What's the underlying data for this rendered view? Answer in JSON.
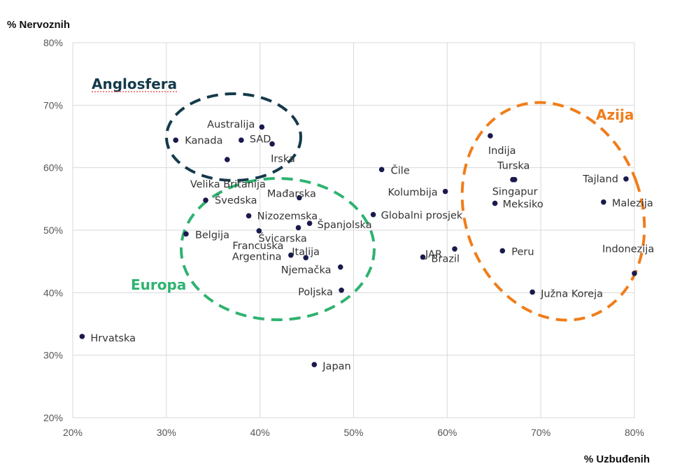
{
  "chart_data": {
    "type": "scatter",
    "xlabel": "% Uzbuđenih",
    "ylabel": "% Nervoznih",
    "xlim": [
      20,
      80
    ],
    "ylim": [
      20,
      80
    ],
    "x_ticks": [
      "20%",
      "30%",
      "40%",
      "50%",
      "60%",
      "70%",
      "80%"
    ],
    "y_ticks": [
      "20%",
      "30%",
      "40%",
      "50%",
      "60%",
      "70%",
      "80%"
    ],
    "grid": true,
    "point_color": "#1a1a4e",
    "highlight_color": "#d6246e",
    "points": [
      {
        "label": "Hrvatska",
        "x": 21,
        "y": 33
      },
      {
        "label": "Japan",
        "x": 45.8,
        "y": 28.5
      },
      {
        "label": "Kanada",
        "x": 31,
        "y": 64.4
      },
      {
        "label": "Australija",
        "x": 40.2,
        "y": 66.5
      },
      {
        "label": "SAD",
        "x": 38,
        "y": 64.4
      },
      {
        "label": "Irska",
        "x": 41.3,
        "y": 63.8
      },
      {
        "label": "Velika Britanija",
        "x": 36.5,
        "y": 61.3
      },
      {
        "label": "Mađarska",
        "x": 44.2,
        "y": 55.2
      },
      {
        "label": "Švedska",
        "x": 34.2,
        "y": 54.8
      },
      {
        "label": "Nizozemska",
        "x": 38.8,
        "y": 52.3
      },
      {
        "label": "Španjolska",
        "x": 45.3,
        "y": 51.1
      },
      {
        "label": "Švicarska",
        "x": 44.1,
        "y": 50.4
      },
      {
        "label": "Belgija",
        "x": 32.1,
        "y": 49.4
      },
      {
        "label": "Francuska",
        "x": 39.9,
        "y": 49.9
      },
      {
        "label": "Argentina",
        "x": 43.3,
        "y": 46
      },
      {
        "label": "Italija",
        "x": 44.9,
        "y": 45.6
      },
      {
        "label": "Njemačka",
        "x": 48.6,
        "y": 44.1
      },
      {
        "label": "Poljska",
        "x": 48.7,
        "y": 40.4
      },
      {
        "label": "Čile",
        "x": 53,
        "y": 59.7
      },
      {
        "label": "Globalni prosjek",
        "x": 52.1,
        "y": 52.5,
        "highlight": true
      },
      {
        "label": "Kolumbija",
        "x": 59.8,
        "y": 56.2
      },
      {
        "label": "JAR",
        "x": 60.8,
        "y": 47
      },
      {
        "label": "Brazil",
        "x": 57.4,
        "y": 45.7
      },
      {
        "label": "Indija",
        "x": 64.6,
        "y": 65.1
      },
      {
        "label": "Turska",
        "x": 67,
        "y": 58.1
      },
      {
        "label": "Singapur",
        "x": 67.2,
        "y": 58.1
      },
      {
        "label": "Meksiko",
        "x": 65.1,
        "y": 54.3
      },
      {
        "label": "Peru",
        "x": 65.9,
        "y": 46.7
      },
      {
        "label": "Južna Koreja",
        "x": 69.1,
        "y": 40.1
      },
      {
        "label": "Tajland",
        "x": 79.1,
        "y": 58.2
      },
      {
        "label": "Malezija",
        "x": 76.7,
        "y": 54.5
      },
      {
        "label": "Indonezija",
        "x": 80,
        "y": 43.1
      }
    ],
    "groups": [
      {
        "name": "Anglosfera",
        "color": "#143a4a"
      },
      {
        "name": "Europa",
        "color": "#2fb370"
      },
      {
        "name": "Azija",
        "color": "#f07d1a"
      }
    ]
  }
}
